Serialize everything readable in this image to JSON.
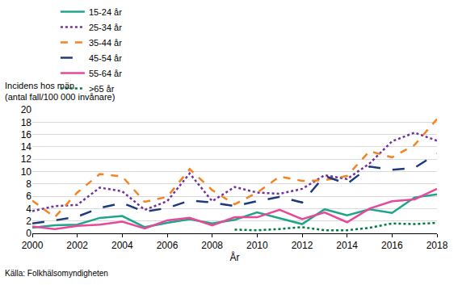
{
  "chart_data": {
    "type": "line",
    "ylabel": "Incidens hos män\n(antal fall/100 000 invånare)",
    "xlabel": "År",
    "note": "Källa: Folkhälsomyndigheten",
    "x": [
      2000,
      2001,
      2002,
      2003,
      2004,
      2005,
      2006,
      2007,
      2008,
      2009,
      2010,
      2011,
      2012,
      2013,
      2014,
      2015,
      2016,
      2017,
      2018
    ],
    "xlim": [
      2000,
      2018
    ],
    "xticks": [
      2000,
      2002,
      2004,
      2006,
      2008,
      2010,
      2012,
      2014,
      2016,
      2018
    ],
    "ylim": [
      0,
      20
    ],
    "yticks": [
      0,
      2,
      4,
      6,
      8,
      10,
      12,
      14,
      16,
      18,
      20
    ],
    "grid": true,
    "legend": "top",
    "series": [
      {
        "name": "15-24 år",
        "color": "#1fa58a",
        "line_style": "solid",
        "values": [
          0.9,
          1.3,
          1.4,
          2.5,
          2.8,
          1.0,
          1.7,
          2.3,
          1.6,
          2.2,
          3.4,
          2.4,
          1.5,
          3.9,
          2.9,
          3.9,
          3.3,
          5.8,
          6.3
        ]
      },
      {
        "name": "25-34 år",
        "color": "#7030a0",
        "line_style": "dot",
        "values": [
          3.6,
          4.4,
          4.6,
          7.4,
          6.8,
          3.8,
          5.2,
          9.7,
          5.2,
          7.5,
          6.6,
          6.4,
          7.2,
          9.4,
          8.8,
          11.3,
          14.9,
          16.3,
          15.0
        ]
      },
      {
        "name": "35-44 år",
        "color": "#f58220",
        "line_style": "dash",
        "values": [
          5.3,
          2.6,
          6.6,
          9.6,
          9.2,
          5.1,
          5.9,
          10.4,
          7.0,
          4.7,
          6.6,
          9.2,
          8.5,
          8.6,
          9.3,
          13.3,
          12.3,
          14.3,
          18.5
        ]
      },
      {
        "name": "45-54 år",
        "color": "#1f3a7a",
        "line_style": "longdash",
        "values": [
          1.6,
          2.1,
          2.7,
          4.1,
          4.9,
          3.5,
          4.1,
          5.3,
          5.0,
          4.4,
          5.2,
          5.9,
          5.0,
          9.3,
          8.0,
          10.8,
          10.3,
          10.6,
          12.9
        ]
      },
      {
        "name": "55-64 år",
        "color": "#e7489b",
        "line_style": "solid",
        "values": [
          1.1,
          0.7,
          1.2,
          1.4,
          1.9,
          0.8,
          2.1,
          2.5,
          1.3,
          2.6,
          2.6,
          3.8,
          2.3,
          3.4,
          1.8,
          4.0,
          5.2,
          5.5,
          7.2
        ]
      },
      {
        "name": ">65 år",
        "color": "#007a3d",
        "line_style": "dot",
        "values": [
          null,
          null,
          null,
          null,
          null,
          null,
          null,
          null,
          null,
          0.6,
          0.5,
          0.7,
          1.0,
          0.5,
          0.5,
          0.9,
          1.6,
          1.5,
          1.7
        ]
      }
    ]
  }
}
